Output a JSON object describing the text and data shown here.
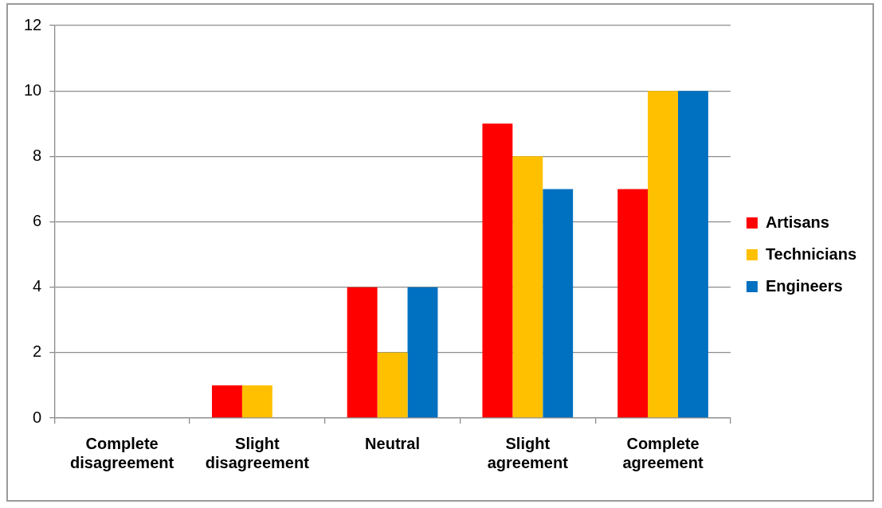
{
  "chart_data": {
    "type": "bar",
    "categories": [
      "Complete disagreement",
      "Slight disagreement",
      "Neutral",
      "Slight agreement",
      "Complete agreement"
    ],
    "series": [
      {
        "name": "Artisans",
        "color": "#ff0000",
        "values": [
          0,
          1,
          4,
          9,
          7
        ]
      },
      {
        "name": "Technicians",
        "color": "#ffc000",
        "values": [
          0,
          1,
          2,
          8,
          10
        ]
      },
      {
        "name": "Engineers",
        "color": "#0070c0",
        "values": [
          0,
          0,
          4,
          7,
          10
        ]
      }
    ],
    "ylim": [
      0,
      12
    ],
    "yticks": [
      0,
      2,
      4,
      6,
      8,
      10,
      12
    ],
    "grid": "y",
    "legend": "right"
  }
}
